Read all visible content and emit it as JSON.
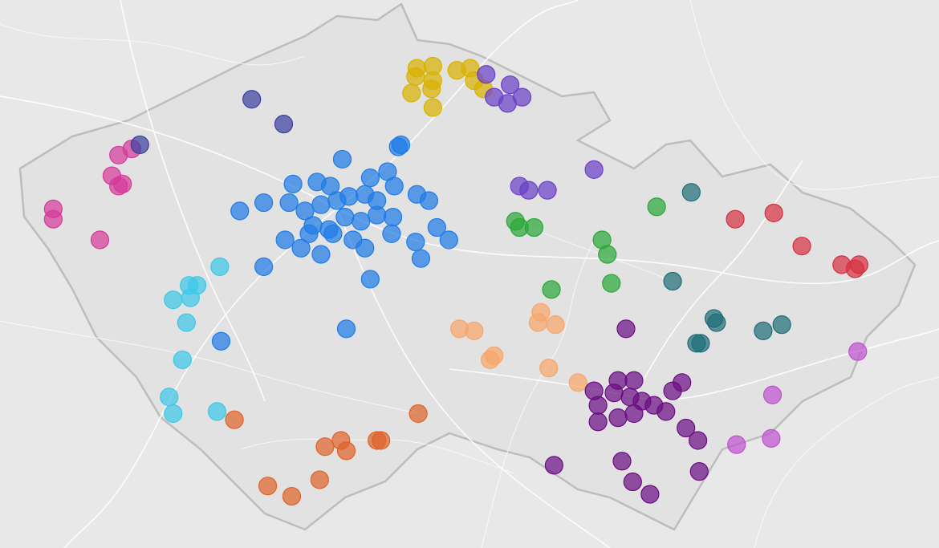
{
  "chart_data": {
    "type": "scatter",
    "xlim": [
      11.95,
      19.0
    ],
    "ylim": [
      48.45,
      51.1
    ],
    "series": [
      {
        "color": "#d6399a",
        "x": [
          12.84,
          12.94,
          12.79,
          12.87,
          12.84,
          12.35,
          12.35,
          12.7
        ],
        "values": [
          50.35,
          50.38,
          50.25,
          50.21,
          50.2,
          50.09,
          50.04,
          49.94
        ]
      },
      {
        "color": "#3b3f9e",
        "x": [
          13.0,
          13.84,
          14.08
        ],
        "values": [
          50.4,
          50.62,
          50.5
        ]
      },
      {
        "color": "#1e7be8",
        "x": [
          14.52,
          14.94,
          14.96,
          14.86,
          14.73,
          14.15,
          14.33,
          14.43,
          14.12,
          14.24,
          14.36,
          14.48,
          14.57,
          14.69,
          14.78,
          14.91,
          15.08,
          15.17,
          14.3,
          14.42,
          14.54,
          14.66,
          14.78,
          14.9,
          15.23,
          15.32,
          15.07,
          15.11,
          14.89,
          14.6,
          14.69,
          14.36,
          14.21,
          14.09,
          13.93,
          13.75,
          13.93,
          14.73,
          14.55,
          13.61,
          14.45,
          14.27
        ],
        "values": [
          50.33,
          50.39,
          50.4,
          50.27,
          50.24,
          50.21,
          50.22,
          50.2,
          50.12,
          50.08,
          50.11,
          50.13,
          50.15,
          50.16,
          50.13,
          50.2,
          50.16,
          50.13,
          50.01,
          49.99,
          50.05,
          50.03,
          50.06,
          50.05,
          50.0,
          49.94,
          49.93,
          49.85,
          49.97,
          49.94,
          49.9,
          49.87,
          49.9,
          49.94,
          49.81,
          50.08,
          50.12,
          49.75,
          49.51,
          49.45,
          49.97,
          49.97
        ]
      },
      {
        "color": "#3cc8e8",
        "x": [
          13.6,
          13.37,
          13.43,
          13.25,
          13.38,
          13.35,
          13.32,
          13.22,
          13.25,
          13.58
        ],
        "values": [
          49.81,
          49.72,
          49.72,
          49.65,
          49.66,
          49.54,
          49.36,
          49.18,
          49.1,
          49.11
        ]
      },
      {
        "color": "#e0622a",
        "x": [
          13.71,
          15.09,
          14.39,
          14.51,
          14.55,
          14.78,
          14.81,
          13.96,
          14.14,
          14.35
        ],
        "values": [
          49.07,
          49.1,
          48.94,
          48.97,
          48.92,
          48.97,
          48.97,
          48.75,
          48.7,
          48.78
        ]
      },
      {
        "color": "#f8a56a",
        "x": [
          15.4,
          15.51,
          16.01,
          15.99,
          16.12,
          15.66,
          15.63,
          16.07,
          16.29
        ],
        "values": [
          49.51,
          49.5,
          49.59,
          49.54,
          49.53,
          49.38,
          49.36,
          49.32,
          49.25
        ]
      },
      {
        "color": "#d9b200",
        "x": [
          15.08,
          15.2,
          15.07,
          15.2,
          15.04,
          15.19,
          15.2,
          15.38,
          15.48,
          15.51,
          15.58
        ],
        "values": [
          50.77,
          50.78,
          50.73,
          50.71,
          50.65,
          50.67,
          50.58,
          50.76,
          50.77,
          50.71,
          50.67
        ]
      },
      {
        "color": "#6a3fc8",
        "x": [
          15.6,
          15.78,
          15.66,
          15.76,
          15.87,
          16.41,
          15.85,
          15.92,
          16.06
        ],
        "values": [
          50.74,
          50.69,
          50.63,
          50.6,
          50.63,
          50.28,
          50.2,
          50.18,
          50.18
        ]
      },
      {
        "color": "#2aa838",
        "x": [
          15.82,
          15.85,
          15.96,
          16.47,
          16.51,
          16.54,
          16.09,
          16.88
        ],
        "values": [
          50.03,
          50.0,
          50.0,
          49.94,
          49.87,
          49.73,
          49.7,
          50.1
        ]
      },
      {
        "color": "#1f6e78",
        "x": [
          17.14,
          17.0,
          17.31,
          17.33,
          17.18,
          17.21,
          17.68,
          17.82
        ],
        "values": [
          50.17,
          49.74,
          49.56,
          49.54,
          49.44,
          49.44,
          49.5,
          49.53
        ]
      },
      {
        "color": "#d63040",
        "x": [
          17.47,
          17.76,
          17.97,
          18.27,
          18.37,
          18.4
        ],
        "values": [
          50.04,
          50.07,
          49.91,
          49.82,
          49.8,
          49.82
        ]
      },
      {
        "color": "#6a0d83",
        "x": [
          16.65,
          16.41,
          16.59,
          16.71,
          16.56,
          16.68,
          16.77,
          16.44,
          16.59,
          16.71,
          16.95,
          16.86,
          17.07,
          17.0,
          17.1,
          17.19,
          16.11,
          16.62,
          16.7,
          16.83,
          17.2,
          16.44
        ],
        "values": [
          49.51,
          49.21,
          49.26,
          49.26,
          49.2,
          49.18,
          49.16,
          49.14,
          49.08,
          49.1,
          49.11,
          49.14,
          49.25,
          49.21,
          49.03,
          48.97,
          48.85,
          48.87,
          48.77,
          48.71,
          48.82,
          49.06
        ]
      },
      {
        "color": "#c050d0",
        "x": [
          18.39,
          17.75,
          17.74,
          17.48
        ],
        "values": [
          49.4,
          49.19,
          48.98,
          48.95
        ]
      }
    ]
  }
}
